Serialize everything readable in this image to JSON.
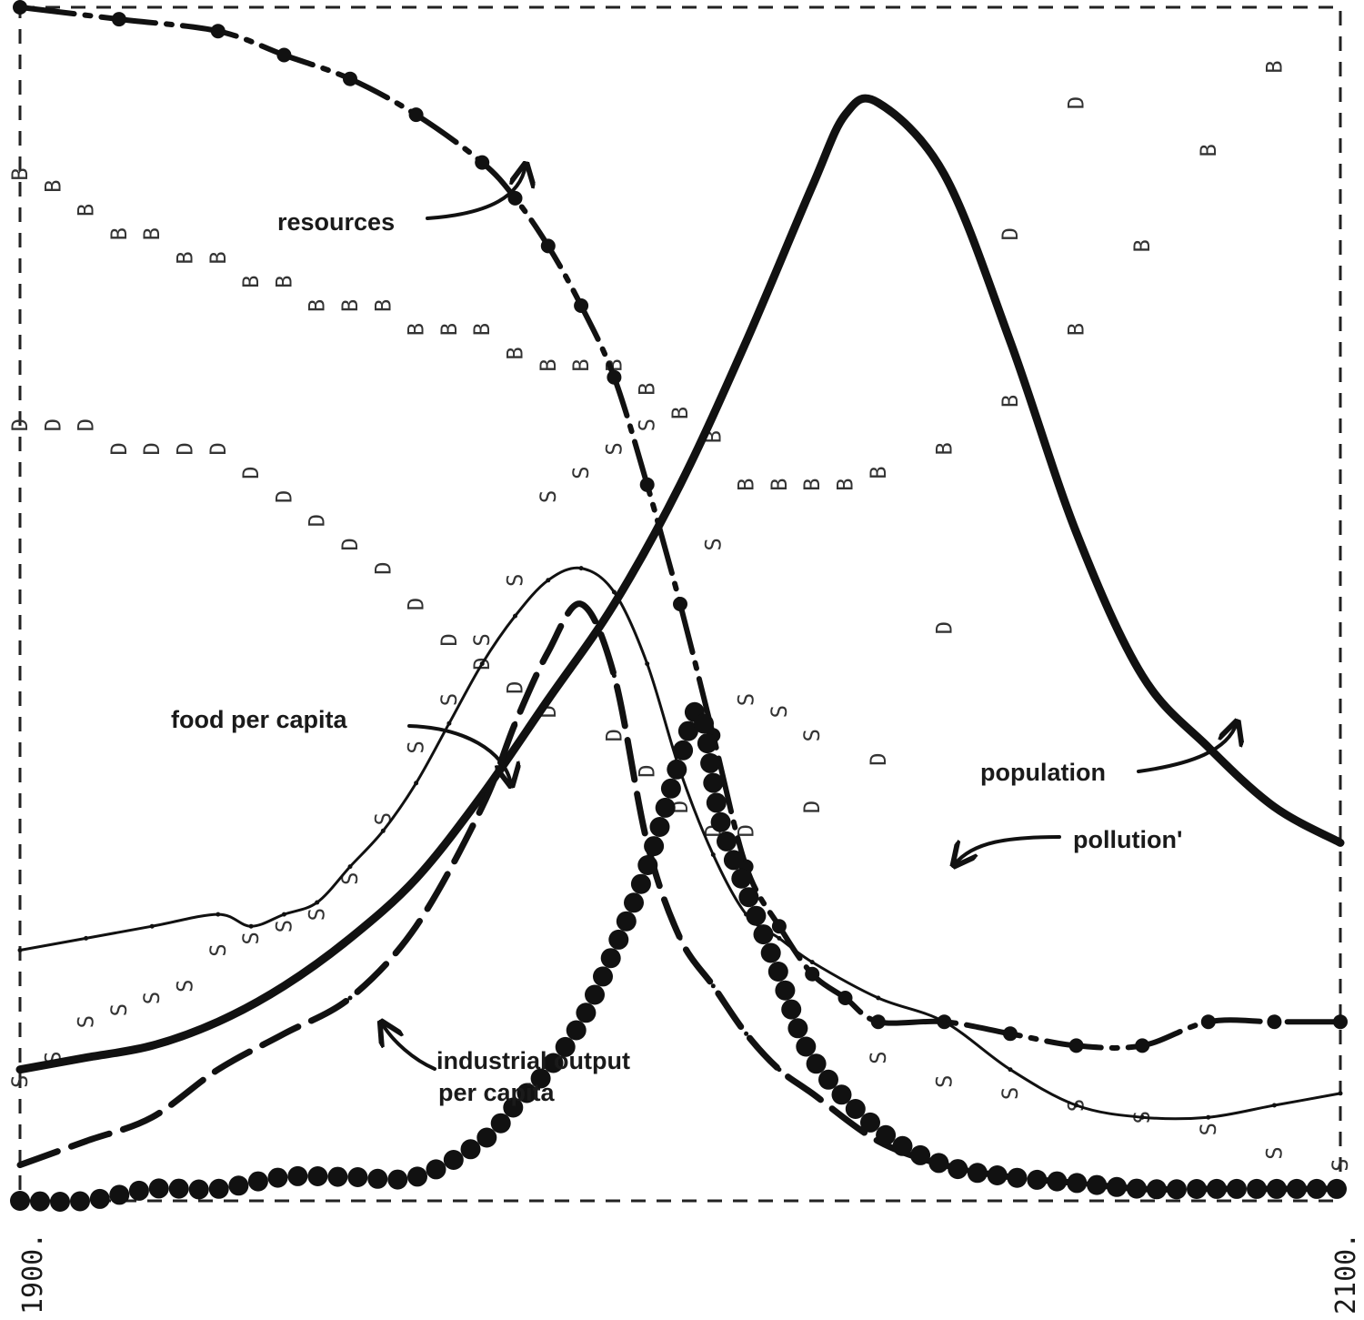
{
  "chart_data": {
    "type": "line",
    "title": "",
    "xlabel": "",
    "ylabel": "",
    "xlim": [
      1900,
      2100
    ],
    "ylim": [
      0,
      1
    ],
    "grid": false,
    "legend": "none",
    "x_tick_labels": [
      "1900.",
      "2100."
    ],
    "annotations": {
      "resources": "resources",
      "food": "food per capita",
      "population": "population",
      "pollution": "pollution'",
      "industrial_line1": "industrial output",
      "industrial_line2": "per capita"
    },
    "series": [
      {
        "name": "resources",
        "style": "dash-dot",
        "x": [
          1900,
          1915,
          1930,
          1940,
          1950,
          1960,
          1970,
          1975,
          1980,
          1985,
          1990,
          1995,
          2000,
          2005,
          2010,
          2015,
          2020,
          2025,
          2030,
          2040,
          2050,
          2060,
          2070,
          2080,
          2090,
          2100
        ],
        "y": [
          1.0,
          0.99,
          0.98,
          0.96,
          0.94,
          0.91,
          0.87,
          0.84,
          0.8,
          0.75,
          0.69,
          0.6,
          0.5,
          0.39,
          0.28,
          0.23,
          0.19,
          0.17,
          0.15,
          0.15,
          0.14,
          0.13,
          0.13,
          0.15,
          0.15,
          0.15
        ]
      },
      {
        "name": "food per capita",
        "style": "thin",
        "x": [
          1900,
          1910,
          1920,
          1930,
          1935,
          1940,
          1945,
          1950,
          1955,
          1960,
          1965,
          1970,
          1975,
          1980,
          1985,
          1990,
          1995,
          2000,
          2005,
          2010,
          2015,
          2020,
          2030,
          2040,
          2050,
          2060,
          2070,
          2080,
          2090,
          2100
        ],
        "y": [
          0.21,
          0.22,
          0.23,
          0.24,
          0.23,
          0.24,
          0.25,
          0.28,
          0.31,
          0.35,
          0.4,
          0.45,
          0.49,
          0.52,
          0.53,
          0.51,
          0.45,
          0.36,
          0.29,
          0.24,
          0.22,
          0.2,
          0.17,
          0.15,
          0.11,
          0.08,
          0.07,
          0.07,
          0.08,
          0.09
        ]
      },
      {
        "name": "population",
        "style": "thick",
        "x": [
          1900,
          1910,
          1920,
          1930,
          1940,
          1950,
          1960,
          1970,
          1980,
          1990,
          2000,
          2010,
          2020,
          2025,
          2030,
          2040,
          2050,
          2060,
          2070,
          2080,
          2090,
          2100
        ],
        "y": [
          0.11,
          0.12,
          0.13,
          0.15,
          0.18,
          0.22,
          0.27,
          0.34,
          0.42,
          0.5,
          0.6,
          0.72,
          0.85,
          0.91,
          0.92,
          0.86,
          0.72,
          0.56,
          0.44,
          0.38,
          0.33,
          0.3
        ]
      },
      {
        "name": "industrial output per capita",
        "style": "long-dash",
        "x": [
          1900,
          1910,
          1920,
          1930,
          1940,
          1950,
          1960,
          1970,
          1975,
          1980,
          1985,
          1990,
          1995,
          2000,
          2005,
          2010,
          2015,
          2020,
          2030,
          2040,
          2050,
          2060,
          2070,
          2080,
          2090,
          2100
        ],
        "y": [
          0.03,
          0.05,
          0.07,
          0.11,
          0.14,
          0.17,
          0.23,
          0.33,
          0.4,
          0.46,
          0.5,
          0.44,
          0.3,
          0.22,
          0.18,
          0.14,
          0.11,
          0.09,
          0.05,
          0.03,
          0.02,
          0.015,
          0.01,
          0.01,
          0.01,
          0.01
        ]
      },
      {
        "name": "pollution",
        "style": "dots",
        "x": [
          1900,
          1910,
          1920,
          1930,
          1940,
          1950,
          1960,
          1970,
          1975,
          1980,
          1985,
          1990,
          1995,
          2000,
          2003,
          2006,
          2010,
          2015,
          2020,
          2030,
          2040,
          2050,
          2060,
          2070,
          2080,
          2090,
          2100
        ],
        "y": [
          0.0,
          0.0,
          0.01,
          0.01,
          0.02,
          0.02,
          0.02,
          0.05,
          0.08,
          0.11,
          0.15,
          0.21,
          0.28,
          0.37,
          0.41,
          0.32,
          0.26,
          0.19,
          0.12,
          0.06,
          0.03,
          0.02,
          0.015,
          0.01,
          0.01,
          0.01,
          0.01
        ]
      }
    ],
    "marker_series": [
      {
        "letter": "B",
        "x": [
          1900,
          1905,
          1910,
          1915,
          1920,
          1925,
          1930,
          1935,
          1940,
          1945,
          1950,
          1955,
          1960,
          1965,
          1970,
          1975,
          1980,
          1985,
          1990,
          1995,
          2000,
          2005,
          2010,
          2015,
          2020,
          2025,
          2030,
          2040,
          2050,
          2060,
          2070,
          2080,
          2090
        ],
        "y": [
          0.86,
          0.85,
          0.83,
          0.81,
          0.81,
          0.79,
          0.79,
          0.77,
          0.77,
          0.75,
          0.75,
          0.75,
          0.73,
          0.73,
          0.73,
          0.71,
          0.7,
          0.7,
          0.7,
          0.68,
          0.66,
          0.64,
          0.6,
          0.6,
          0.6,
          0.6,
          0.61,
          0.63,
          0.67,
          0.73,
          0.8,
          0.88,
          0.95
        ]
      },
      {
        "letter": "D",
        "x": [
          1900,
          1905,
          1910,
          1915,
          1920,
          1925,
          1930,
          1935,
          1940,
          1945,
          1950,
          1955,
          1960,
          1965,
          1970,
          1975,
          1980,
          1990,
          1995,
          2000,
          2005,
          2010,
          2020,
          2030,
          2040,
          2050,
          2060
        ],
        "y": [
          0.65,
          0.65,
          0.65,
          0.63,
          0.63,
          0.63,
          0.63,
          0.61,
          0.59,
          0.57,
          0.55,
          0.53,
          0.5,
          0.47,
          0.45,
          0.43,
          0.41,
          0.39,
          0.36,
          0.33,
          0.31,
          0.31,
          0.33,
          0.37,
          0.48,
          0.81,
          0.92
        ]
      },
      {
        "letter": "S",
        "x": [
          1900,
          1905,
          1910,
          1915,
          1920,
          1925,
          1930,
          1935,
          1940,
          1945,
          1950,
          1955,
          1960,
          1965,
          1970,
          1975,
          1980,
          1985,
          1990,
          1995,
          2005,
          2010,
          2015,
          2020,
          2030,
          2040,
          2050,
          2060,
          2070,
          2080,
          2090,
          2100
        ],
        "y": [
          0.1,
          0.12,
          0.15,
          0.16,
          0.17,
          0.18,
          0.21,
          0.22,
          0.23,
          0.24,
          0.27,
          0.32,
          0.38,
          0.42,
          0.47,
          0.52,
          0.59,
          0.61,
          0.63,
          0.65,
          0.55,
          0.42,
          0.41,
          0.39,
          0.12,
          0.1,
          0.09,
          0.08,
          0.07,
          0.06,
          0.04,
          0.03
        ]
      }
    ]
  }
}
